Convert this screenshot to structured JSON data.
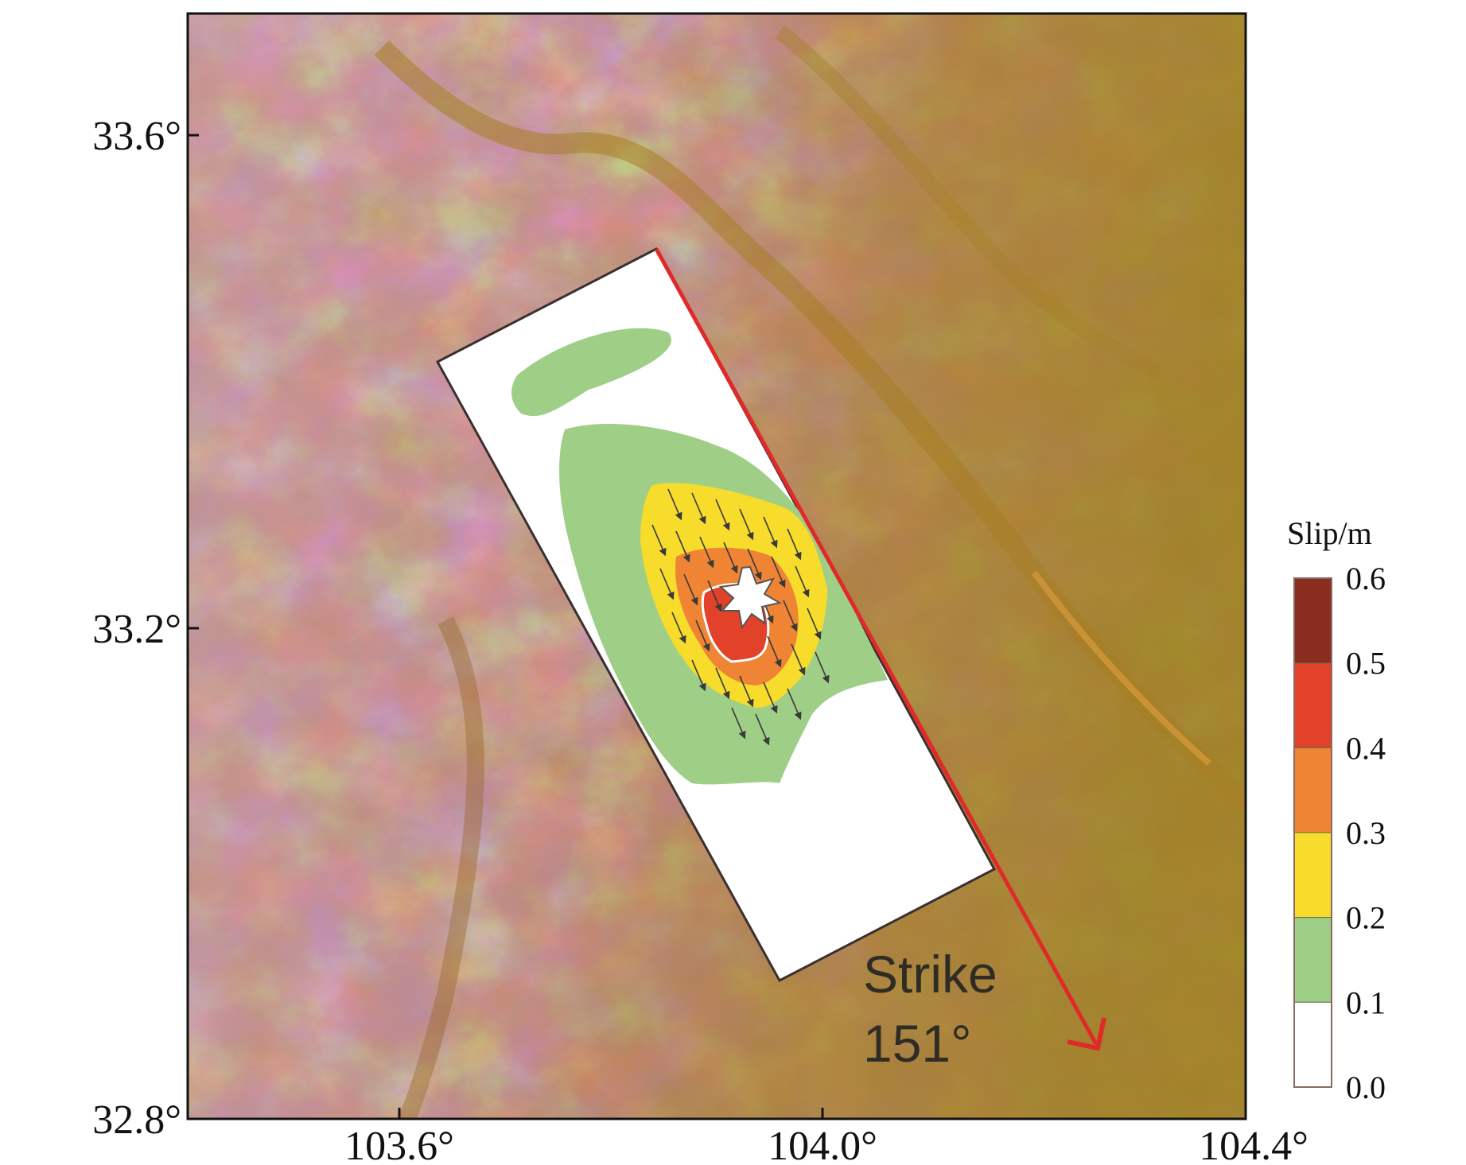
{
  "map": {
    "x_ticks": [
      "103.6°",
      "104.0°",
      "104.4°"
    ],
    "y_ticks": [
      "33.6°",
      "33.2°",
      "32.8°"
    ],
    "annotation": {
      "line1": "Strike",
      "line2": "151°"
    }
  },
  "colorbar": {
    "title": "Slip/m",
    "labels": [
      "0.6",
      "0.5",
      "0.4",
      "0.3",
      "0.2",
      "0.1",
      "0.0"
    ],
    "colors": [
      "#8b2d1e",
      "#e2412a",
      "#ef8434",
      "#f7dc2b",
      "#9fcf86",
      "#ffffff"
    ]
  },
  "colors": {
    "terrain_high": "#ffffff",
    "terrain_mid": "#a86b6b",
    "terrain_low": "#a2701c",
    "fault_trace": "#e02a2a"
  }
}
